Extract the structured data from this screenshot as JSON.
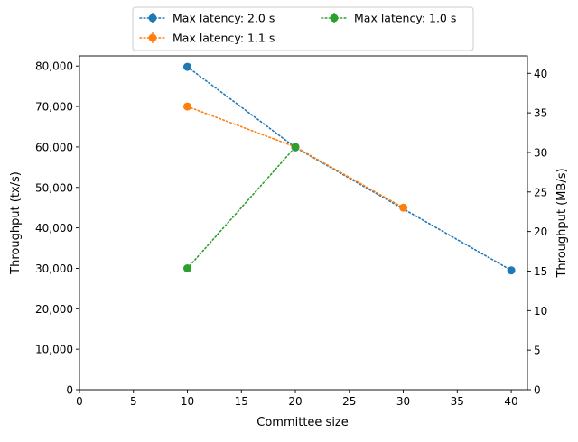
{
  "chart_data": {
    "type": "line",
    "xlabel": "Committee size",
    "ylabel": "Throughput (tx/s)",
    "ylabel_right": "Throughput (MB/s)",
    "xlim": [
      0,
      41.5
    ],
    "ylim": [
      0,
      82500
    ],
    "ylim_right": [
      0,
      42.2
    ],
    "x_ticks": [
      0,
      5,
      10,
      15,
      20,
      25,
      30,
      35,
      40
    ],
    "x_tick_labels": [
      "0",
      "5",
      "10",
      "15",
      "20",
      "25",
      "30",
      "35",
      "40"
    ],
    "y_ticks": [
      0,
      10000,
      20000,
      30000,
      40000,
      50000,
      60000,
      70000,
      80000
    ],
    "y_tick_labels": [
      "0",
      "10,000",
      "20,000",
      "30,000",
      "40,000",
      "50,000",
      "60,000",
      "70,000",
      "80,000"
    ],
    "y_right_ticks": [
      0,
      5,
      10,
      15,
      20,
      25,
      30,
      35,
      40
    ],
    "y_right_tick_labels": [
      "0",
      "5",
      "10",
      "15",
      "20",
      "25",
      "30",
      "35",
      "40"
    ],
    "grid": false,
    "legend_position": "top-center",
    "line_style": "dotted",
    "series": [
      {
        "name": "Max latency: 2.0 s",
        "color": "#1f77b4",
        "x": [
          10,
          20,
          40
        ],
        "y": [
          79800,
          59900,
          29500
        ]
      },
      {
        "name": "Max latency: 1.1 s",
        "color": "#ff7f0e",
        "x": [
          10,
          20,
          30
        ],
        "y": [
          70000,
          60000,
          45000
        ]
      },
      {
        "name": "Max latency: 1.0 s",
        "color": "#2ca02c",
        "x": [
          10,
          20
        ],
        "y": [
          30000,
          60000
        ]
      }
    ]
  }
}
